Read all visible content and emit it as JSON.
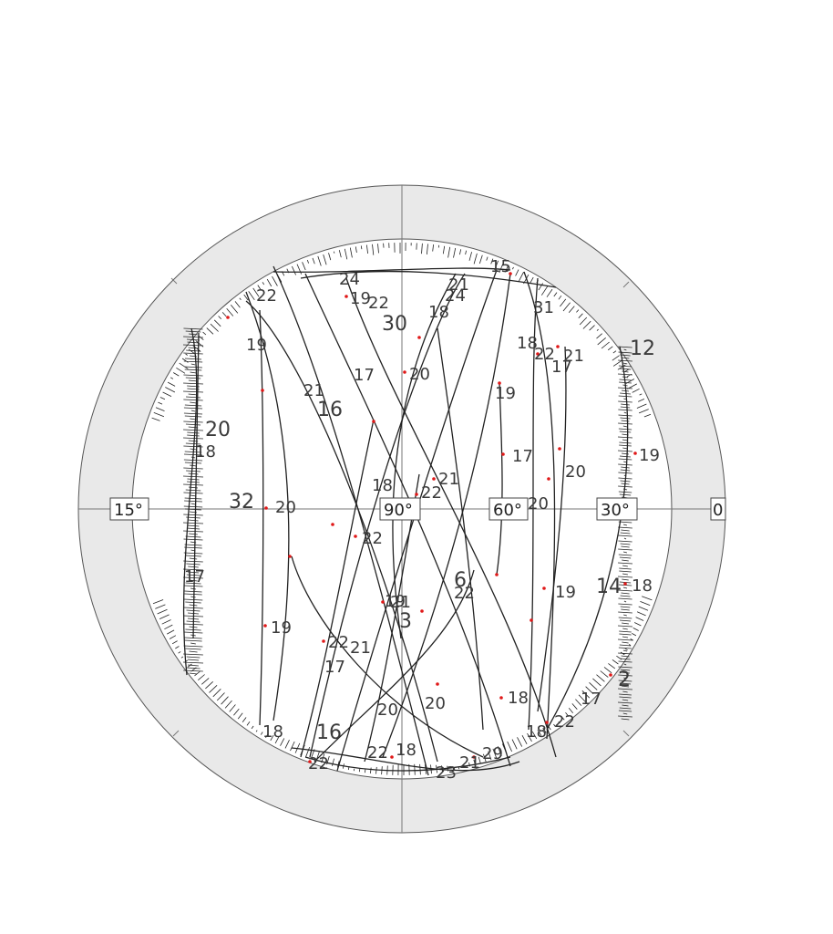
{
  "plot": {
    "ring_labels": [
      "15°",
      "90°",
      "60°",
      "30°",
      "0"
    ],
    "track_labels": [
      "22",
      "24",
      "19",
      "22",
      "30",
      "18",
      "31",
      "21",
      "24",
      "15",
      "18",
      "22",
      "21",
      "17",
      "12",
      "19",
      "21",
      "17",
      "20",
      "16",
      "20",
      "18",
      "19",
      "17",
      "20",
      "19",
      "18",
      "21",
      "22",
      "32",
      "20",
      "20",
      "22",
      "17",
      "6",
      "22",
      "14",
      "18",
      "19",
      "19",
      "21",
      "3",
      "22",
      "21",
      "19",
      "17",
      "17",
      "2",
      "20",
      "20",
      "18",
      "18",
      "18",
      "22",
      "16",
      "22",
      "18",
      "23",
      "21",
      "29",
      "22"
    ]
  }
}
